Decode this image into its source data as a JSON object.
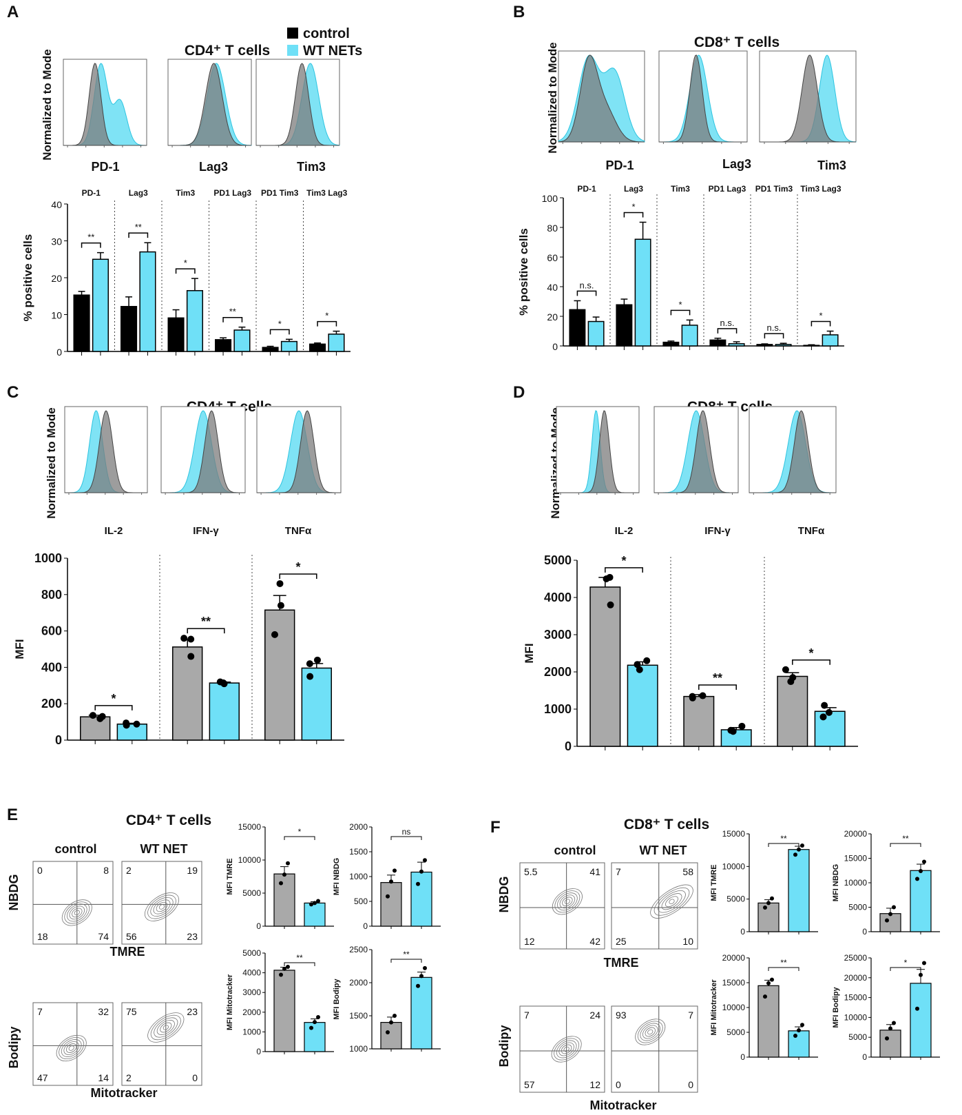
{
  "colors": {
    "control": "#000000",
    "control_gray": "#a9a9a9",
    "wt": "#6fe0f7",
    "hist_gray": "#7c7c7c",
    "hist_cyan": "#5fdcf2"
  },
  "legend": {
    "control": "control",
    "wt": "WT NETs"
  },
  "panels": {
    "A": {
      "letter": "A",
      "title": "CD4⁺ T cells",
      "hist_ylabel": "Normalized to Mode",
      "hist_labels": [
        "PD-1",
        "Lag3",
        "Tim3"
      ]
    },
    "B": {
      "letter": "B",
      "title": "CD8⁺ T cells",
      "hist_ylabel": "Normalized to Mode",
      "hist_labels": [
        "PD-1",
        "Lag3",
        "Tim3"
      ]
    },
    "C": {
      "letter": "C",
      "title": "CD4⁺ T cells",
      "hist_ylabel": "Normalized to Mode"
    },
    "D": {
      "letter": "D",
      "title": "CD8⁺ T cells",
      "hist_ylabel": "Normalized to Mode"
    },
    "E": {
      "letter": "E",
      "title": "CD4⁺ T cells",
      "col1": "control",
      "col2": "WT NET",
      "row1_ylabel": "NBDG",
      "row1_xlabel": "TMRE",
      "row2_ylabel": "Bodipy",
      "row2_xlabel": "Mitotracker",
      "quadrants": [
        [
          "0",
          "8",
          "18",
          "74"
        ],
        [
          "2",
          "19",
          "56",
          "23"
        ],
        [
          "7",
          "32",
          "47",
          "14"
        ],
        [
          "75",
          "23",
          "2",
          "0"
        ]
      ]
    },
    "F": {
      "letter": "F",
      "title": "CD8⁺ T cells",
      "col1": "control",
      "col2": "WT NET",
      "row1_ylabel": "NBDG",
      "row1_xlabel": "TMRE",
      "row2_ylabel": "Bodipy",
      "row2_xlabel": "Mitotracker",
      "quadrants": [
        [
          "5.5",
          "41",
          "12",
          "42"
        ],
        [
          "7",
          "58",
          "25",
          "10"
        ],
        [
          "7",
          "24",
          "57",
          "12"
        ],
        [
          "93",
          "7",
          "0",
          "0"
        ]
      ]
    }
  },
  "chart_data": [
    {
      "id": "A",
      "type": "bar",
      "ylabel": "% positive cells",
      "ylim": [
        0,
        40
      ],
      "yticks": [
        0,
        10,
        20,
        30,
        40
      ],
      "groups": [
        "PD-1",
        "Lag3",
        "Tim3",
        "PD1 Lag3",
        "PD1 Tim3",
        "Tim3 Lag3"
      ],
      "series": [
        {
          "name": "control",
          "values": [
            15.3,
            12.2,
            9.1,
            3.2,
            1.1,
            2.0
          ],
          "errors": [
            1.0,
            2.6,
            2.2,
            0.5,
            0.3,
            0.3
          ]
        },
        {
          "name": "WT NETs",
          "values": [
            25.0,
            27.0,
            16.5,
            5.8,
            2.7,
            4.7
          ],
          "errors": [
            1.8,
            2.5,
            3.3,
            0.8,
            0.6,
            0.8
          ]
        }
      ],
      "significance": [
        "**",
        "**",
        "*",
        "**",
        "*",
        "*"
      ]
    },
    {
      "id": "B",
      "type": "bar",
      "ylabel": "% positive cells",
      "ylim": [
        0,
        100
      ],
      "yticks": [
        0,
        20,
        40,
        60,
        80,
        100
      ],
      "groups": [
        "PD-1",
        "Lag3",
        "Tim3",
        "PD1 Lag3",
        "PD1 Tim3",
        "Tim3 Lag3"
      ],
      "series": [
        {
          "name": "control",
          "values": [
            24.5,
            27.8,
            2.5,
            4.0,
            1.0,
            0.4
          ],
          "errors": [
            6.0,
            3.8,
            0.8,
            1.2,
            0.4,
            0.4
          ]
        },
        {
          "name": "WT NETs",
          "values": [
            16.5,
            72.0,
            14.0,
            1.5,
            1.0,
            7.5
          ],
          "errors": [
            3.0,
            11.5,
            3.5,
            1.3,
            0.8,
            2.5
          ]
        }
      ],
      "significance": [
        "n.s.",
        "*",
        "*",
        "n.s.",
        "n.s.",
        "*"
      ]
    },
    {
      "id": "C",
      "type": "bar",
      "ylabel": "MFI",
      "ylim": [
        0,
        1000
      ],
      "yticks": [
        0,
        200,
        400,
        600,
        800,
        1000
      ],
      "groups": [
        "IL-2",
        "IFN-γ",
        "TNFα"
      ],
      "series": [
        {
          "name": "control",
          "values": [
            128,
            512,
            715
          ],
          "errors": [
            9,
            40,
            80
          ],
          "points": [
            [
              118,
              130,
              136
            ],
            [
              460,
              555,
              560
            ],
            [
              580,
              740,
              860
            ]
          ]
        },
        {
          "name": "WT NETs",
          "values": [
            88,
            314,
            396
          ],
          "errors": [
            5,
            5,
            25
          ],
          "points": [
            [
              82,
              88,
              94
            ],
            [
              310,
              315,
              320
            ],
            [
              350,
              420,
              440
            ]
          ]
        }
      ],
      "significance": [
        "*",
        "**",
        "*"
      ]
    },
    {
      "id": "D",
      "type": "bar",
      "ylabel": "MFI",
      "ylim": [
        0,
        5000
      ],
      "yticks": [
        0,
        1000,
        2000,
        3000,
        4000,
        5000
      ],
      "groups": [
        "IL-2",
        "IFN-γ",
        "TNFα"
      ],
      "series": [
        {
          "name": "control",
          "values": [
            4280,
            1340,
            1880
          ],
          "errors": [
            260,
            50,
            100
          ],
          "points": [
            [
              3800,
              4500,
              4540
            ],
            [
              1300,
              1340,
              1360
            ],
            [
              1740,
              1850,
              2060
            ]
          ]
        },
        {
          "name": "WT NETs",
          "values": [
            2180,
            445,
            940
          ],
          "errors": [
            90,
            60,
            100
          ],
          "points": [
            [
              2060,
              2200,
              2300
            ],
            [
              400,
              430,
              540
            ],
            [
              790,
              910,
              1100
            ]
          ]
        }
      ],
      "significance": [
        "*",
        "**",
        "*"
      ]
    },
    {
      "id": "E1",
      "type": "bar",
      "ylabel": "MFI TMRE",
      "ylim": [
        0,
        15000
      ],
      "yticks": [
        0,
        5000,
        10000,
        15000
      ],
      "values": [
        7900,
        3500
      ],
      "errors": [
        1100,
        200
      ],
      "points": [
        [
          6500,
          7800,
          9500
        ],
        [
          3300,
          3500,
          3800
        ]
      ],
      "significance": "*"
    },
    {
      "id": "E2",
      "type": "bar",
      "ylabel": "MFI NBDG",
      "ylim": [
        0,
        2000
      ],
      "yticks": [
        0,
        500,
        1000,
        1500,
        2000
      ],
      "values": [
        880,
        1090
      ],
      "errors": [
        150,
        200
      ],
      "points": [
        [
          600,
          900,
          1120
        ],
        [
          850,
          1100,
          1330
        ]
      ],
      "significance": "ns"
    },
    {
      "id": "E3",
      "type": "bar",
      "ylabel": "MFI Mitotracker",
      "ylim": [
        0,
        5000
      ],
      "yticks": [
        0,
        1000,
        2000,
        3000,
        4000,
        5000
      ],
      "values": [
        4130,
        1480
      ],
      "errors": [
        150,
        180
      ],
      "points": [
        [
          3900,
          4200,
          4300
        ],
        [
          1200,
          1500,
          1750
        ]
      ],
      "significance": "**"
    },
    {
      "id": "E4",
      "type": "bar",
      "ylabel": "MFI Bodipy",
      "ylim": [
        1000,
        2500
      ],
      "yticks": [
        1000,
        1500,
        2000,
        2500
      ],
      "values": [
        1400,
        2080
      ],
      "errors": [
        80,
        80
      ],
      "points": [
        [
          1250,
          1400,
          1500
        ],
        [
          1950,
          2100,
          2220
        ]
      ],
      "significance": "**"
    },
    {
      "id": "F1",
      "type": "bar",
      "ylabel": "MFI TMRE",
      "ylim": [
        0,
        15000
      ],
      "yticks": [
        0,
        5000,
        10000,
        15000
      ],
      "values": [
        4400,
        12600
      ],
      "errors": [
        500,
        500
      ],
      "points": [
        [
          3700,
          4400,
          5100
        ],
        [
          11800,
          12600,
          13200
        ]
      ],
      "significance": "**"
    },
    {
      "id": "F2",
      "type": "bar",
      "ylabel": "MFI NBDG",
      "ylim": [
        0,
        20000
      ],
      "yticks": [
        0,
        5000,
        10000,
        15000,
        20000
      ],
      "values": [
        3700,
        12500
      ],
      "errors": [
        1100,
        1300
      ],
      "points": [
        [
          2300,
          3600,
          5000
        ],
        [
          10800,
          12400,
          14300
        ]
      ],
      "significance": "**"
    },
    {
      "id": "F3",
      "type": "bar",
      "ylabel": "MFI Mitotracker",
      "ylim": [
        0,
        20000
      ],
      "yticks": [
        0,
        5000,
        10000,
        15000,
        20000
      ],
      "values": [
        14400,
        5300
      ],
      "errors": [
        1100,
        800
      ],
      "points": [
        [
          12200,
          14900,
          15600
        ],
        [
          4300,
          5400,
          6500
        ]
      ],
      "significance": "**"
    },
    {
      "id": "F4",
      "type": "bar",
      "ylabel": "MFI Bodipy",
      "ylim": [
        0,
        25000
      ],
      "yticks": [
        0,
        5000,
        10000,
        15000,
        20000,
        25000
      ],
      "values": [
        6800,
        18600
      ],
      "errors": [
        1400,
        3500
      ],
      "points": [
        [
          4700,
          7200,
          8600
        ],
        [
          12200,
          20700,
          23700
        ]
      ],
      "significance": "*"
    }
  ]
}
